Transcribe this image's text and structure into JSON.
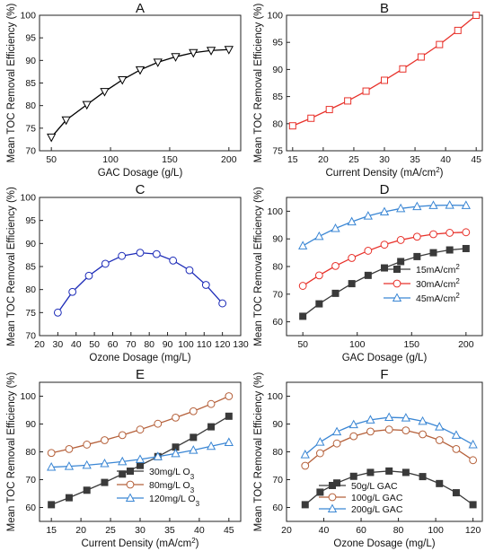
{
  "chart_data": [
    {
      "type": "line",
      "panel": "A",
      "grid": false,
      "legend": "none",
      "xlabel": "GAC Dosage (g/L)",
      "ylabel": "Mean TOC Removal Efficiency (%)",
      "xlim": [
        40,
        210
      ],
      "ylim": [
        70,
        100
      ],
      "xticks": [
        50,
        100,
        150,
        200
      ],
      "yticks": [
        70,
        75,
        80,
        85,
        90,
        95,
        100
      ],
      "series": [
        {
          "marker": "triangle-down",
          "color": "#000000",
          "fill": "#ffffff",
          "x": [
            50,
            62.5,
            80,
            95,
            110,
            125,
            140,
            155,
            170,
            185,
            200
          ],
          "y": [
            73,
            76.8,
            80.2,
            83.1,
            85.7,
            87.9,
            89.6,
            90.8,
            91.7,
            92.2,
            92.4
          ]
        }
      ]
    },
    {
      "type": "line",
      "panel": "B",
      "grid": false,
      "legend": "none",
      "xlabel": "Current Density (mA/cm²)",
      "ylabel": "Mean TOC Removal Efficiency (%)",
      "xlim": [
        14,
        46
      ],
      "ylim": [
        75,
        100
      ],
      "xticks": [
        15,
        20,
        25,
        30,
        35,
        40,
        45
      ],
      "yticks": [
        75,
        80,
        85,
        90,
        95,
        100
      ],
      "series": [
        {
          "marker": "square",
          "color": "#e8312a",
          "fill": "#ffffff",
          "x": [
            15,
            18,
            21,
            24,
            27,
            30,
            33,
            36,
            39,
            42,
            45
          ],
          "y": [
            79.6,
            81,
            82.6,
            84.2,
            86,
            88,
            90.1,
            92.3,
            94.6,
            97.2,
            100
          ]
        }
      ]
    },
    {
      "type": "line",
      "panel": "C",
      "grid": false,
      "legend": "none",
      "xlabel": "Ozone Dosage (mg/L)",
      "ylabel": "Mean TOC Removal Efficiency (%)",
      "xlim": [
        20,
        130
      ],
      "ylim": [
        70,
        100
      ],
      "xticks": [
        20,
        30,
        40,
        50,
        60,
        70,
        80,
        90,
        100,
        110,
        120,
        130
      ],
      "yticks": [
        70,
        75,
        80,
        85,
        90,
        95,
        100
      ],
      "series": [
        {
          "marker": "circle",
          "color": "#1c2bb8",
          "fill": "#ffffff",
          "x": [
            30,
            38,
            47,
            56,
            65,
            75,
            84,
            93,
            102,
            111,
            120
          ],
          "y": [
            75,
            79.5,
            83,
            85.6,
            87.3,
            88,
            87.7,
            86.3,
            84.2,
            81,
            77
          ]
        }
      ]
    },
    {
      "type": "line",
      "panel": "D",
      "grid": false,
      "legend": "lower-right",
      "xlabel": "GAC Dosage (g/L)",
      "ylabel": "Mean TOC Removal Efficiency (%)",
      "xlim": [
        35,
        215
      ],
      "ylim": [
        55,
        105
      ],
      "xticks": [
        50,
        100,
        150,
        200
      ],
      "yticks": [
        60,
        70,
        80,
        90,
        100
      ],
      "series": [
        {
          "name": "15mA/cm²",
          "marker": "square",
          "color": "#3a3a3a",
          "fill": "#3a3a3a",
          "x": [
            50,
            65,
            80,
            95,
            110,
            125,
            140,
            155,
            170,
            185,
            200
          ],
          "y": [
            62,
            66.5,
            70.3,
            73.8,
            76.8,
            79.5,
            81.8,
            83.6,
            85,
            86,
            86.5
          ]
        },
        {
          "name": "30mA/cm²",
          "marker": "circle",
          "color": "#e8312a",
          "fill": "#ffffff",
          "x": [
            50,
            65,
            80,
            95,
            110,
            125,
            140,
            155,
            170,
            185,
            200
          ],
          "y": [
            73,
            76.8,
            80.2,
            83.1,
            85.7,
            87.9,
            89.6,
            90.8,
            91.7,
            92.2,
            92.4
          ]
        },
        {
          "name": "45mA/cm²",
          "marker": "triangle-up",
          "color": "#3a86d4",
          "fill": "#ffffff",
          "x": [
            50,
            65,
            80,
            95,
            110,
            125,
            140,
            155,
            170,
            185,
            200
          ],
          "y": [
            87.5,
            90.9,
            93.8,
            96.2,
            98.3,
            99.8,
            101,
            101.7,
            102.1,
            102.2,
            102.1
          ]
        }
      ]
    },
    {
      "type": "line",
      "panel": "E",
      "grid": false,
      "legend": "lower-right",
      "xlabel": "Current Density (mA/cm²)",
      "ylabel": "Mean TOC Removal Efficiency (%)",
      "xlim": [
        13,
        47
      ],
      "ylim": [
        55,
        105
      ],
      "xticks": [
        15,
        20,
        25,
        30,
        35,
        40,
        45
      ],
      "yticks": [
        60,
        70,
        80,
        90,
        100
      ],
      "series": [
        {
          "name": "30mg/L O₃",
          "marker": "square",
          "color": "#3a3a3a",
          "fill": "#3a3a3a",
          "x": [
            15,
            18,
            21,
            24,
            27,
            30,
            33,
            36,
            39,
            42,
            45
          ],
          "y": [
            61,
            63.5,
            66.2,
            69,
            72,
            75.1,
            78.3,
            81.7,
            85.2,
            89,
            92.8
          ]
        },
        {
          "name": "80mg/L O₃",
          "marker": "circle",
          "color": "#b5603a",
          "fill": "#ffffff",
          "x": [
            15,
            18,
            21,
            24,
            27,
            30,
            33,
            36,
            39,
            42,
            45
          ],
          "y": [
            79.6,
            81,
            82.6,
            84.2,
            86,
            88,
            90.1,
            92.3,
            94.6,
            97.2,
            100
          ]
        },
        {
          "name": "120mg/L O₃",
          "marker": "triangle-up",
          "color": "#3a86d4",
          "fill": "#ffffff",
          "x": [
            15,
            18,
            21,
            24,
            27,
            30,
            33,
            36,
            39,
            42,
            45
          ],
          "y": [
            74.5,
            74.8,
            75.2,
            75.8,
            76.5,
            77.3,
            78.3,
            79.4,
            80.6,
            82,
            83.4
          ]
        }
      ]
    },
    {
      "type": "line",
      "panel": "F",
      "grid": false,
      "legend": "lower-center",
      "xlabel": "Ozone Dosage (mg/L)",
      "ylabel": "Mean TOC Removal Efficiency (%)",
      "xlim": [
        20,
        125
      ],
      "ylim": [
        55,
        105
      ],
      "xticks": [
        20,
        40,
        60,
        80,
        100,
        120
      ],
      "yticks": [
        60,
        70,
        80,
        90,
        100
      ],
      "series": [
        {
          "name": "50g/L GAC",
          "marker": "square",
          "color": "#3a3a3a",
          "fill": "#3a3a3a",
          "x": [
            30,
            38,
            47,
            56,
            65,
            75,
            84,
            93,
            102,
            111,
            120
          ],
          "y": [
            61,
            65.5,
            68.8,
            71.2,
            72.6,
            73.1,
            72.6,
            71.1,
            68.6,
            65.3,
            61
          ]
        },
        {
          "name": "100g/L GAC",
          "marker": "circle",
          "color": "#b5603a",
          "fill": "#ffffff",
          "x": [
            30,
            38,
            47,
            56,
            65,
            75,
            84,
            93,
            102,
            111,
            120
          ],
          "y": [
            75,
            79.5,
            83,
            85.6,
            87.3,
            88,
            87.7,
            86.3,
            84.2,
            81,
            77
          ]
        },
        {
          "name": "200g/L GAC",
          "marker": "triangle-up",
          "color": "#3a86d4",
          "fill": "#ffffff",
          "x": [
            30,
            38,
            47,
            56,
            65,
            75,
            84,
            93,
            102,
            111,
            120
          ],
          "y": [
            79,
            83.5,
            87.2,
            89.8,
            91.5,
            92.4,
            92.2,
            91,
            89,
            86,
            82.6
          ]
        }
      ]
    }
  ]
}
